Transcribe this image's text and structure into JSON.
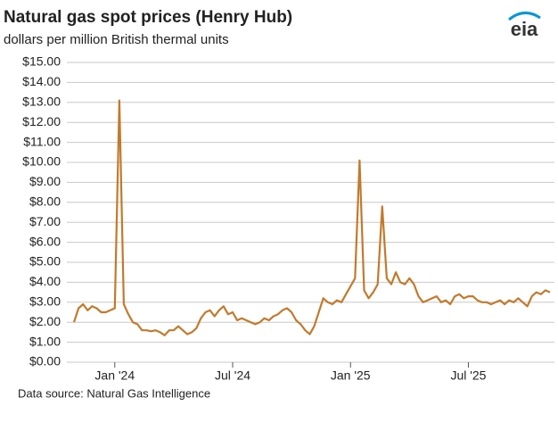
{
  "chart_data": {
    "type": "line",
    "title": "Natural gas spot prices (Henry Hub)",
    "subtitle": "dollars per million British thermal units",
    "source": "Data source: Natural Gas Intelligence",
    "logo": "eia",
    "color": "#c27a2c",
    "grid": true,
    "ylim": [
      0,
      15
    ],
    "yticks": [
      {
        "value": 0,
        "label": "$0.00"
      },
      {
        "value": 1,
        "label": "$1.00"
      },
      {
        "value": 2,
        "label": "$2.00"
      },
      {
        "value": 3,
        "label": "$3.00"
      },
      {
        "value": 4,
        "label": "$4.00"
      },
      {
        "value": 5,
        "label": "$5.00"
      },
      {
        "value": 6,
        "label": "$6.00"
      },
      {
        "value": 7,
        "label": "$7.00"
      },
      {
        "value": 8,
        "label": "$8.00"
      },
      {
        "value": 9,
        "label": "$9.00"
      },
      {
        "value": 10,
        "label": "$10.00"
      },
      {
        "value": 11,
        "label": "$11.00"
      },
      {
        "value": 12,
        "label": "$12.00"
      },
      {
        "value": 13,
        "label": "$13.00"
      },
      {
        "value": 14,
        "label": "$14.00"
      },
      {
        "value": 15,
        "label": "$15.00"
      }
    ],
    "categories": [
      null,
      null,
      null,
      null,
      null,
      null,
      null,
      null,
      null,
      "Jan '24",
      null,
      null,
      null,
      null,
      null,
      null,
      null,
      null,
      null,
      null,
      null,
      null,
      null,
      null,
      null,
      null,
      null,
      null,
      null,
      null,
      null,
      null,
      null,
      null,
      null,
      "Jul '24",
      null,
      null,
      null,
      null,
      null,
      null,
      null,
      null,
      null,
      null,
      null,
      null,
      null,
      null,
      null,
      null,
      null,
      null,
      null,
      null,
      null,
      null,
      null,
      null,
      null,
      "Jan '25",
      null,
      null,
      null,
      null,
      null,
      null,
      null,
      null,
      null,
      null,
      null,
      null,
      null,
      null,
      null,
      null,
      null,
      null,
      null,
      null,
      null,
      null,
      null,
      null,
      null,
      "Jul '25",
      null,
      null,
      null,
      null,
      null,
      null,
      null,
      null,
      null,
      null,
      null,
      null,
      null,
      null,
      null,
      null,
      null,
      null
    ],
    "values": [
      2.0,
      2.7,
      2.9,
      2.6,
      2.8,
      2.7,
      2.5,
      2.5,
      2.6,
      2.7,
      13.1,
      2.9,
      2.4,
      2.0,
      1.9,
      1.6,
      1.6,
      1.55,
      1.6,
      1.5,
      1.35,
      1.6,
      1.6,
      1.8,
      1.6,
      1.4,
      1.5,
      1.7,
      2.2,
      2.5,
      2.6,
      2.3,
      2.6,
      2.8,
      2.4,
      2.5,
      2.1,
      2.2,
      2.1,
      2.0,
      1.9,
      2.0,
      2.2,
      2.1,
      2.3,
      2.4,
      2.6,
      2.7,
      2.5,
      2.1,
      1.9,
      1.6,
      1.4,
      1.8,
      2.5,
      3.2,
      3.0,
      2.9,
      3.1,
      3.0,
      3.4,
      3.8,
      4.2,
      10.1,
      3.6,
      3.2,
      3.5,
      3.9,
      7.8,
      4.2,
      3.9,
      4.5,
      4.0,
      3.9,
      4.2,
      3.9,
      3.3,
      3.0,
      3.1,
      3.2,
      3.3,
      3.0,
      3.1,
      2.9,
      3.3,
      3.4,
      3.2,
      3.3,
      3.3,
      3.1,
      3.0,
      3.0,
      2.9,
      3.0,
      3.1,
      2.9,
      3.1,
      3.0,
      3.2,
      3.0,
      2.8,
      3.3,
      3.5,
      3.4,
      3.6,
      3.5
    ]
  }
}
